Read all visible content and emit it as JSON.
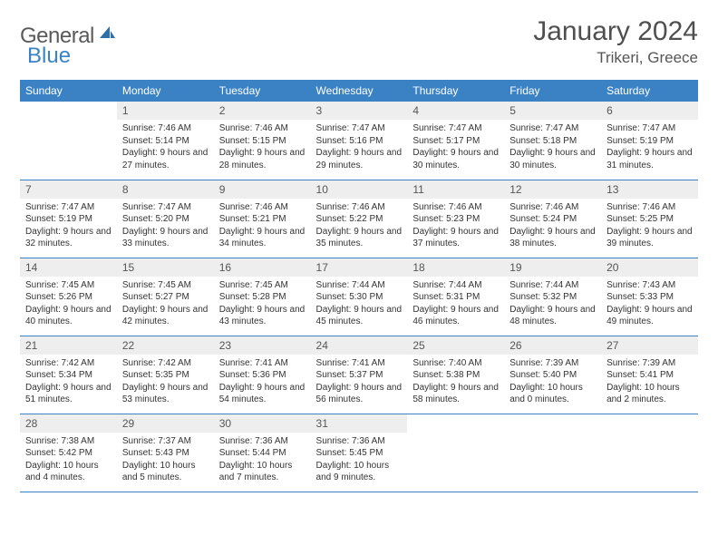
{
  "brand": {
    "part1": "General",
    "part2": "Blue"
  },
  "title": "January 2024",
  "location": "Trikeri, Greece",
  "header_bg": "#3b82c4",
  "weekdays": [
    "Sunday",
    "Monday",
    "Tuesday",
    "Wednesday",
    "Thursday",
    "Friday",
    "Saturday"
  ],
  "weeks": [
    [
      {
        "n": "",
        "sr": "",
        "ss": "",
        "dl": ""
      },
      {
        "n": "1",
        "sr": "Sunrise: 7:46 AM",
        "ss": "Sunset: 5:14 PM",
        "dl": "Daylight: 9 hours and 27 minutes."
      },
      {
        "n": "2",
        "sr": "Sunrise: 7:46 AM",
        "ss": "Sunset: 5:15 PM",
        "dl": "Daylight: 9 hours and 28 minutes."
      },
      {
        "n": "3",
        "sr": "Sunrise: 7:47 AM",
        "ss": "Sunset: 5:16 PM",
        "dl": "Daylight: 9 hours and 29 minutes."
      },
      {
        "n": "4",
        "sr": "Sunrise: 7:47 AM",
        "ss": "Sunset: 5:17 PM",
        "dl": "Daylight: 9 hours and 30 minutes."
      },
      {
        "n": "5",
        "sr": "Sunrise: 7:47 AM",
        "ss": "Sunset: 5:18 PM",
        "dl": "Daylight: 9 hours and 30 minutes."
      },
      {
        "n": "6",
        "sr": "Sunrise: 7:47 AM",
        "ss": "Sunset: 5:19 PM",
        "dl": "Daylight: 9 hours and 31 minutes."
      }
    ],
    [
      {
        "n": "7",
        "sr": "Sunrise: 7:47 AM",
        "ss": "Sunset: 5:19 PM",
        "dl": "Daylight: 9 hours and 32 minutes."
      },
      {
        "n": "8",
        "sr": "Sunrise: 7:47 AM",
        "ss": "Sunset: 5:20 PM",
        "dl": "Daylight: 9 hours and 33 minutes."
      },
      {
        "n": "9",
        "sr": "Sunrise: 7:46 AM",
        "ss": "Sunset: 5:21 PM",
        "dl": "Daylight: 9 hours and 34 minutes."
      },
      {
        "n": "10",
        "sr": "Sunrise: 7:46 AM",
        "ss": "Sunset: 5:22 PM",
        "dl": "Daylight: 9 hours and 35 minutes."
      },
      {
        "n": "11",
        "sr": "Sunrise: 7:46 AM",
        "ss": "Sunset: 5:23 PM",
        "dl": "Daylight: 9 hours and 37 minutes."
      },
      {
        "n": "12",
        "sr": "Sunrise: 7:46 AM",
        "ss": "Sunset: 5:24 PM",
        "dl": "Daylight: 9 hours and 38 minutes."
      },
      {
        "n": "13",
        "sr": "Sunrise: 7:46 AM",
        "ss": "Sunset: 5:25 PM",
        "dl": "Daylight: 9 hours and 39 minutes."
      }
    ],
    [
      {
        "n": "14",
        "sr": "Sunrise: 7:45 AM",
        "ss": "Sunset: 5:26 PM",
        "dl": "Daylight: 9 hours and 40 minutes."
      },
      {
        "n": "15",
        "sr": "Sunrise: 7:45 AM",
        "ss": "Sunset: 5:27 PM",
        "dl": "Daylight: 9 hours and 42 minutes."
      },
      {
        "n": "16",
        "sr": "Sunrise: 7:45 AM",
        "ss": "Sunset: 5:28 PM",
        "dl": "Daylight: 9 hours and 43 minutes."
      },
      {
        "n": "17",
        "sr": "Sunrise: 7:44 AM",
        "ss": "Sunset: 5:30 PM",
        "dl": "Daylight: 9 hours and 45 minutes."
      },
      {
        "n": "18",
        "sr": "Sunrise: 7:44 AM",
        "ss": "Sunset: 5:31 PM",
        "dl": "Daylight: 9 hours and 46 minutes."
      },
      {
        "n": "19",
        "sr": "Sunrise: 7:44 AM",
        "ss": "Sunset: 5:32 PM",
        "dl": "Daylight: 9 hours and 48 minutes."
      },
      {
        "n": "20",
        "sr": "Sunrise: 7:43 AM",
        "ss": "Sunset: 5:33 PM",
        "dl": "Daylight: 9 hours and 49 minutes."
      }
    ],
    [
      {
        "n": "21",
        "sr": "Sunrise: 7:42 AM",
        "ss": "Sunset: 5:34 PM",
        "dl": "Daylight: 9 hours and 51 minutes."
      },
      {
        "n": "22",
        "sr": "Sunrise: 7:42 AM",
        "ss": "Sunset: 5:35 PM",
        "dl": "Daylight: 9 hours and 53 minutes."
      },
      {
        "n": "23",
        "sr": "Sunrise: 7:41 AM",
        "ss": "Sunset: 5:36 PM",
        "dl": "Daylight: 9 hours and 54 minutes."
      },
      {
        "n": "24",
        "sr": "Sunrise: 7:41 AM",
        "ss": "Sunset: 5:37 PM",
        "dl": "Daylight: 9 hours and 56 minutes."
      },
      {
        "n": "25",
        "sr": "Sunrise: 7:40 AM",
        "ss": "Sunset: 5:38 PM",
        "dl": "Daylight: 9 hours and 58 minutes."
      },
      {
        "n": "26",
        "sr": "Sunrise: 7:39 AM",
        "ss": "Sunset: 5:40 PM",
        "dl": "Daylight: 10 hours and 0 minutes."
      },
      {
        "n": "27",
        "sr": "Sunrise: 7:39 AM",
        "ss": "Sunset: 5:41 PM",
        "dl": "Daylight: 10 hours and 2 minutes."
      }
    ],
    [
      {
        "n": "28",
        "sr": "Sunrise: 7:38 AM",
        "ss": "Sunset: 5:42 PM",
        "dl": "Daylight: 10 hours and 4 minutes."
      },
      {
        "n": "29",
        "sr": "Sunrise: 7:37 AM",
        "ss": "Sunset: 5:43 PM",
        "dl": "Daylight: 10 hours and 5 minutes."
      },
      {
        "n": "30",
        "sr": "Sunrise: 7:36 AM",
        "ss": "Sunset: 5:44 PM",
        "dl": "Daylight: 10 hours and 7 minutes."
      },
      {
        "n": "31",
        "sr": "Sunrise: 7:36 AM",
        "ss": "Sunset: 5:45 PM",
        "dl": "Daylight: 10 hours and 9 minutes."
      },
      {
        "n": "",
        "sr": "",
        "ss": "",
        "dl": ""
      },
      {
        "n": "",
        "sr": "",
        "ss": "",
        "dl": ""
      },
      {
        "n": "",
        "sr": "",
        "ss": "",
        "dl": ""
      }
    ]
  ]
}
